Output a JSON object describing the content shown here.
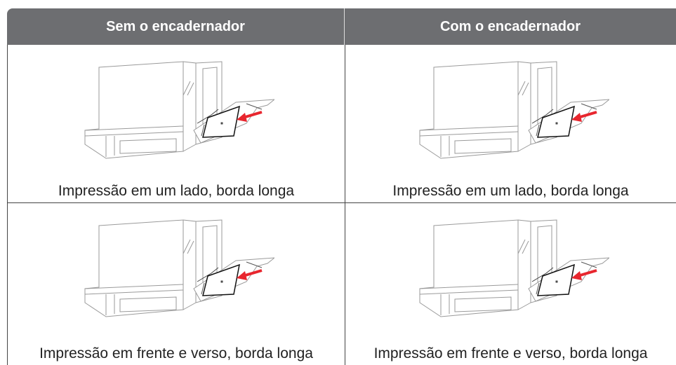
{
  "table": {
    "header": [
      "Sem o encadernador",
      "Com o encadernador"
    ],
    "rows": [
      [
        "Impressão em um lado, borda longa",
        "Impressão em um lado, borda longa"
      ],
      [
        "Impressão em frente e verso, borda longa",
        "Impressão em frente e verso, borda longa"
      ]
    ]
  }
}
